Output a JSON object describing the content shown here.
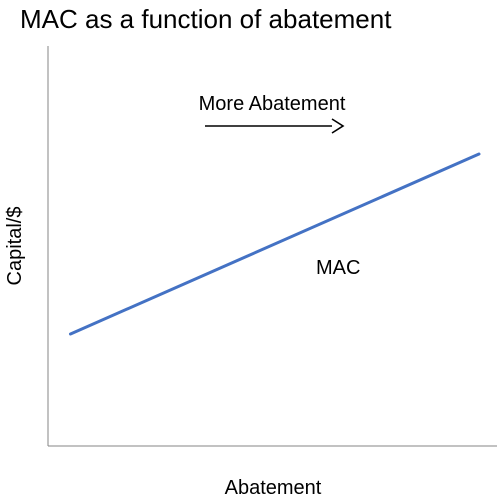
{
  "chart_data": {
    "type": "line",
    "title": "MAC as a function of abatement",
    "xlabel": "Abatement",
    "ylabel": "Capital/$",
    "grid": false,
    "legend": "none",
    "xlim": [
      0,
      1
    ],
    "ylim": [
      0,
      1
    ],
    "series": [
      {
        "name": "MAC",
        "x": [
          0.05,
          0.96
        ],
        "y": [
          0.28,
          0.73
        ],
        "color": "#4472c4"
      }
    ],
    "annotations": [
      {
        "text": "More Abatement",
        "kind": "arrow-label"
      },
      {
        "text": "MAC",
        "kind": "series-label"
      }
    ]
  }
}
